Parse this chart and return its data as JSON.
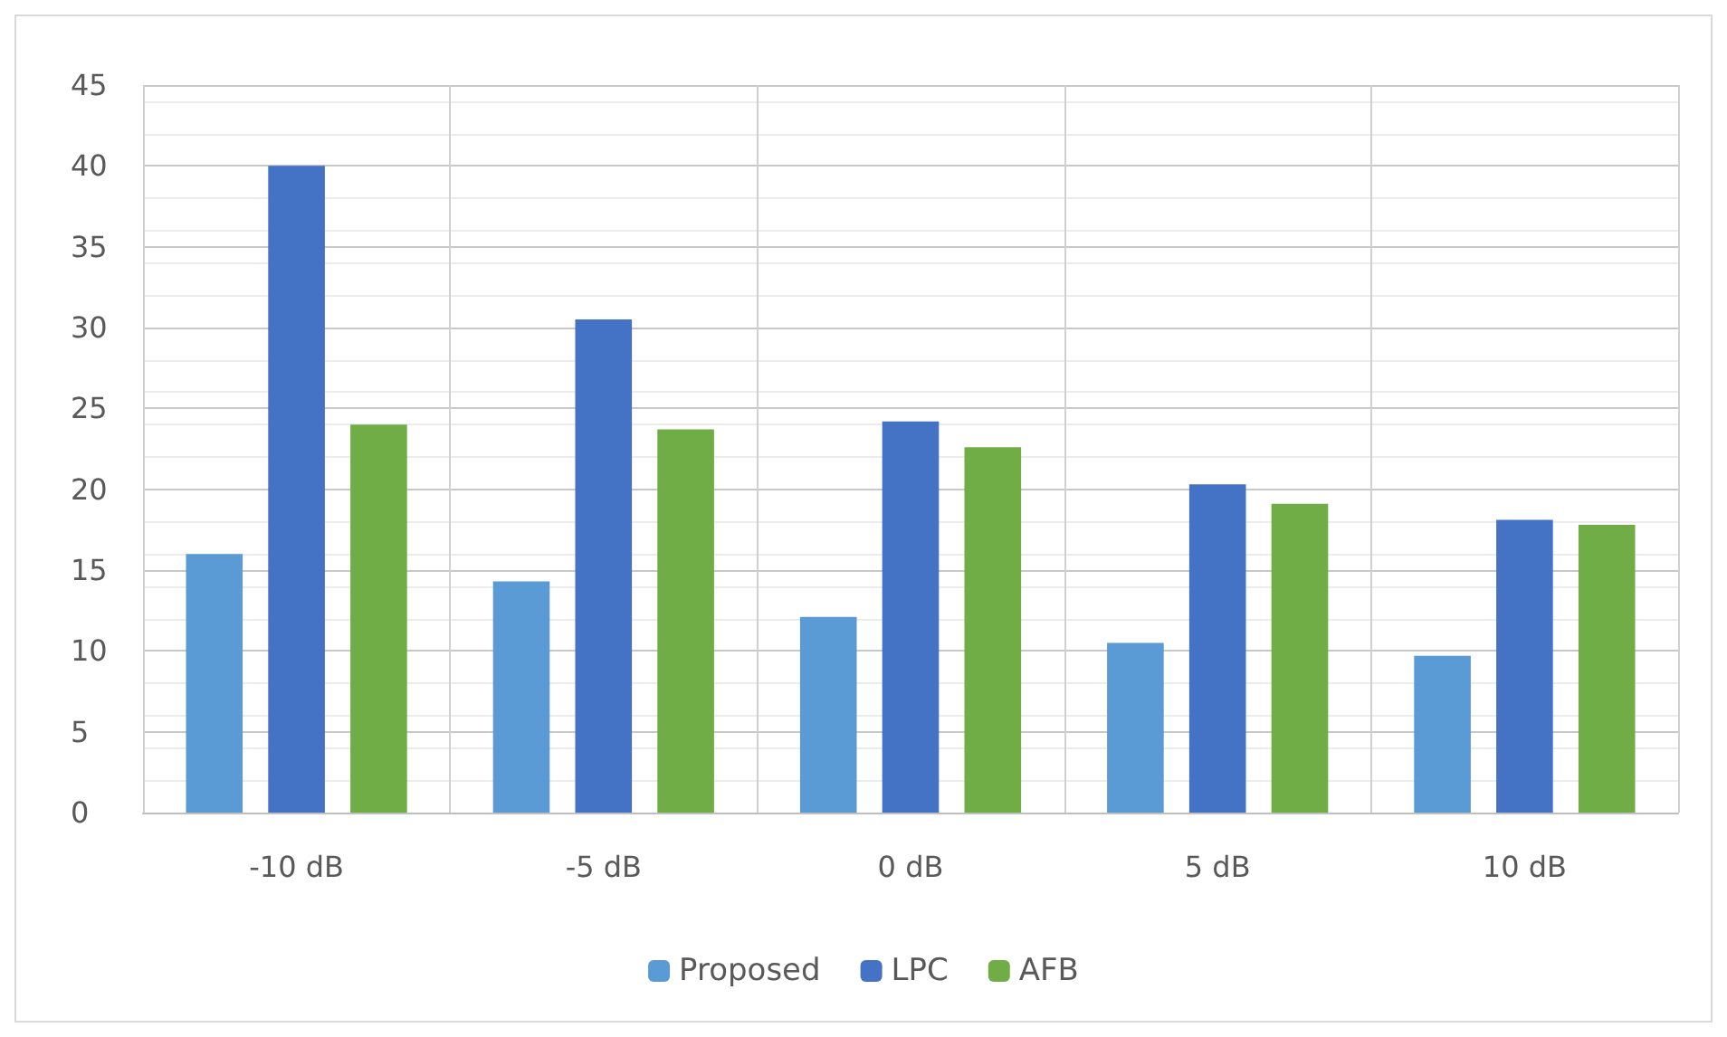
{
  "chart_data": {
    "type": "bar",
    "categories": [
      "-10 dB",
      "-5 dB",
      "0 dB",
      "5 dB",
      "10 dB"
    ],
    "series": [
      {
        "name": "Proposed",
        "color": "#5b9bd5",
        "values": [
          16.0,
          14.3,
          12.1,
          10.5,
          9.7
        ]
      },
      {
        "name": "LPC",
        "color": "#4472c4",
        "values": [
          40.0,
          30.5,
          24.2,
          20.3,
          18.1
        ]
      },
      {
        "name": "AFB",
        "color": "#70ad47",
        "values": [
          24.0,
          23.7,
          22.6,
          19.1,
          17.8
        ]
      }
    ],
    "ylim": [
      0,
      45
    ],
    "yticks": [
      0,
      5,
      10,
      15,
      20,
      25,
      30,
      35,
      40,
      45
    ],
    "grid": true,
    "legend": "bottom"
  }
}
